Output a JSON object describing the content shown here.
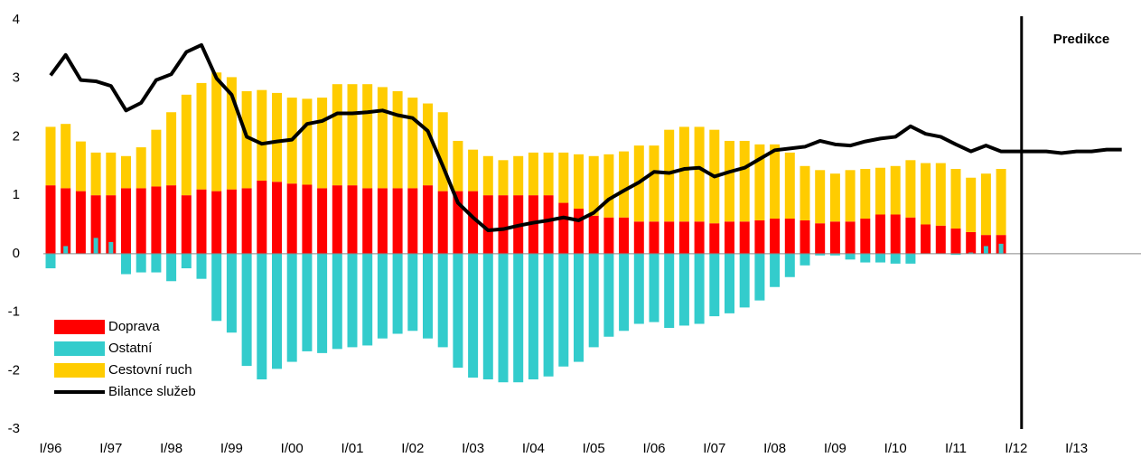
{
  "chart_data": {
    "type": "bar",
    "stacked": true,
    "categories": [
      "I/96",
      null,
      null,
      null,
      "I/97",
      null,
      null,
      null,
      "I/98",
      null,
      null,
      null,
      "I/99",
      null,
      null,
      null,
      "I/00",
      null,
      null,
      null,
      "I/01",
      null,
      null,
      null,
      "I/02",
      null,
      null,
      null,
      "I/03",
      null,
      null,
      null,
      "I/04",
      null,
      null,
      null,
      "I/05",
      null,
      null,
      null,
      "I/06",
      null,
      null,
      null,
      "I/07",
      null,
      null,
      null,
      "I/08",
      null,
      null,
      null,
      "I/09",
      null,
      null,
      null,
      "I/10",
      null,
      null,
      null,
      "I/11",
      null,
      null,
      null,
      "I/12",
      null,
      null,
      null,
      "I/13",
      null,
      null,
      null
    ],
    "series": [
      {
        "name": "Doprava",
        "type": "bar",
        "color": "#ff0000",
        "values": [
          1.17,
          1.12,
          1.07,
          1.0,
          1.0,
          1.12,
          1.12,
          1.15,
          1.17,
          1.0,
          1.1,
          1.07,
          1.1,
          1.12,
          1.25,
          1.23,
          1.2,
          1.18,
          1.12,
          1.17,
          1.17,
          1.12,
          1.12,
          1.12,
          1.12,
          1.17,
          1.07,
          1.07,
          1.07,
          1.0,
          1.0,
          1.0,
          1.0,
          1.0,
          0.87,
          0.77,
          0.65,
          0.62,
          0.62,
          0.55,
          0.55,
          0.55,
          0.55,
          0.55,
          0.52,
          0.55,
          0.55,
          0.57,
          0.6,
          0.6,
          0.57,
          0.52,
          0.55,
          0.55,
          0.6,
          0.67,
          0.67,
          0.62,
          0.5,
          0.48,
          0.43,
          0.37,
          0.32,
          0.32,
          null,
          null,
          null,
          null,
          null,
          null,
          null,
          null
        ]
      },
      {
        "name": "Ostatní",
        "type": "bar",
        "color": "#33cccc",
        "values": [
          -0.25,
          0.13,
          0,
          0.27,
          0.2,
          -0.35,
          -0.32,
          -0.32,
          -0.47,
          -0.25,
          -0.43,
          -1.15,
          -1.35,
          -1.92,
          -2.15,
          -1.97,
          -1.85,
          -1.67,
          -1.7,
          -1.63,
          -1.6,
          -1.57,
          -1.45,
          -1.37,
          -1.32,
          -1.45,
          -1.6,
          -1.95,
          -2.12,
          -2.15,
          -2.2,
          -2.2,
          -2.15,
          -2.1,
          -1.93,
          -1.85,
          -1.6,
          -1.42,
          -1.32,
          -1.2,
          -1.17,
          -1.27,
          -1.23,
          -1.2,
          -1.07,
          -1.02,
          -0.92,
          -0.8,
          -0.57,
          -0.4,
          -0.2,
          -0.03,
          -0.03,
          -0.1,
          -0.15,
          -0.15,
          -0.17,
          -0.17,
          0,
          0,
          -0.02,
          0.02,
          0.13,
          0.17,
          null,
          null,
          null,
          null,
          null,
          null,
          null,
          null
        ]
      },
      {
        "name": "Cestovní ruch",
        "type": "bar",
        "color": "#ffcc00",
        "values": [
          1.0,
          1.1,
          0.85,
          0.73,
          0.73,
          0.55,
          0.7,
          0.97,
          1.25,
          1.72,
          1.82,
          2.03,
          1.92,
          1.66,
          1.55,
          1.52,
          1.47,
          1.47,
          1.55,
          1.73,
          1.73,
          1.78,
          1.73,
          1.66,
          1.55,
          1.4,
          1.35,
          0.86,
          0.71,
          0.67,
          0.6,
          0.67,
          0.73,
          0.73,
          0.86,
          0.93,
          1.02,
          1.08,
          1.13,
          1.3,
          1.3,
          1.57,
          1.62,
          1.62,
          1.6,
          1.38,
          1.38,
          1.3,
          1.27,
          1.13,
          0.93,
          0.91,
          0.82,
          0.88,
          0.85,
          0.8,
          0.83,
          0.98,
          1.05,
          1.07,
          1.02,
          0.93,
          1.05,
          1.13,
          null,
          null,
          null,
          null,
          null,
          null,
          null,
          null
        ]
      },
      {
        "name": "Bilance služeb",
        "type": "line",
        "color": "#000000",
        "values": [
          3.05,
          3.4,
          2.97,
          2.95,
          2.87,
          2.45,
          2.58,
          2.97,
          3.07,
          3.45,
          3.57,
          3.0,
          2.72,
          2.0,
          1.88,
          1.92,
          1.95,
          2.22,
          2.27,
          2.4,
          2.4,
          2.42,
          2.45,
          2.37,
          2.32,
          2.1,
          1.5,
          0.87,
          0.62,
          0.4,
          0.42,
          0.48,
          0.53,
          0.57,
          0.62,
          0.57,
          0.7,
          0.93,
          1.08,
          1.22,
          1.4,
          1.38,
          1.45,
          1.47,
          1.32,
          1.4,
          1.47,
          1.62,
          1.77,
          1.8,
          1.83,
          1.93,
          1.87,
          1.85,
          1.92,
          1.97,
          2.0,
          2.18,
          2.05,
          2.0,
          1.87,
          1.75,
          1.85,
          1.75,
          1.75,
          1.75,
          1.75,
          1.72,
          1.75,
          1.75,
          1.78,
          1.78
        ]
      }
    ],
    "ylim": [
      -3,
      4
    ],
    "yticks": [
      -3,
      -2,
      -1,
      0,
      1,
      2,
      3,
      4
    ],
    "grid": false,
    "legend": "lower left",
    "annotation": "Predikce"
  }
}
